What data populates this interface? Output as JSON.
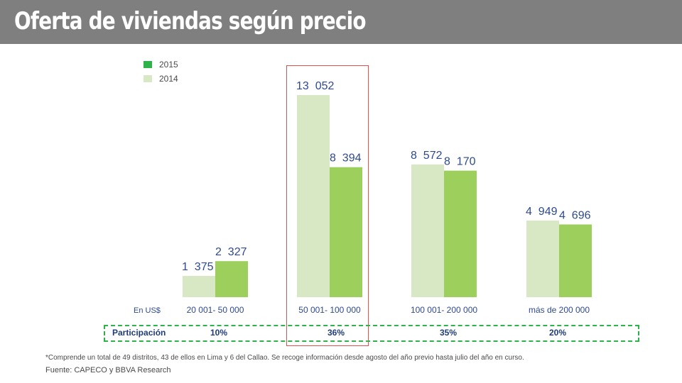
{
  "header": {
    "title": "Oferta de viviendas según precio"
  },
  "chart_data": {
    "type": "bar",
    "currency_label": "En US$",
    "categories": [
      "20 001- 50 000",
      "50 001- 100 000",
      "100 001- 200 000",
      "más de 200 000"
    ],
    "series": [
      {
        "name": "2014",
        "values": [
          1375,
          13052,
          8572,
          4949
        ],
        "labels": [
          "1  375",
          "13  052",
          "8  572",
          "4  949"
        ],
        "color": "#d9e8c4"
      },
      {
        "name": "2015",
        "values": [
          2327,
          8394,
          8170,
          4696
        ],
        "labels": [
          "2  327",
          "8  394",
          "8  170",
          "4  696"
        ],
        "color": "#9ccf5c"
      }
    ],
    "legend_order": [
      "2015",
      "2014"
    ],
    "legend_swatch_colors": {
      "2015": "#2db34a",
      "2014": "#d9e8c4"
    },
    "ylim": [
      0,
      14500
    ],
    "grid": false,
    "legend_placement": "top-left",
    "label_color": "#2e4a8f"
  },
  "participacion": {
    "label": "Participación",
    "values": [
      "10%",
      "36%",
      "35%",
      "20%"
    ]
  },
  "footnote": "*Comprende un total de 49 distritos, 43 de ellos en Lima y 6 del Callao. Se recoge información desde agosto del año previo hasta julio del año en curso.",
  "source": "Fuente:  CAPECO y BBVA Research"
}
